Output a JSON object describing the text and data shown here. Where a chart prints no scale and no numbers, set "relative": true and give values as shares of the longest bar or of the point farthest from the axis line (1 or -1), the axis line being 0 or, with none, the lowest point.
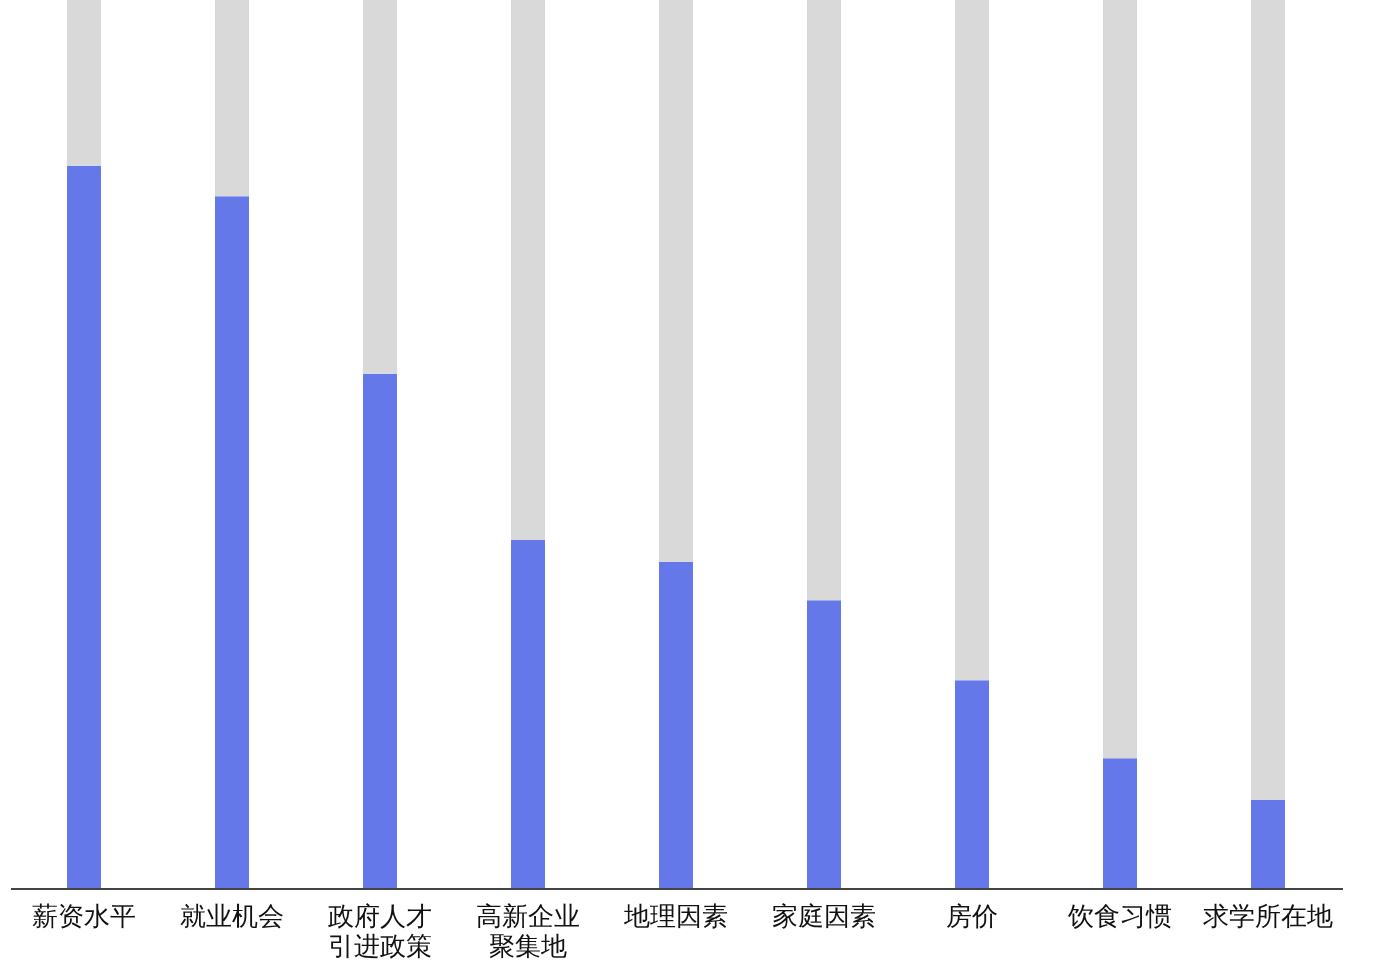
{
  "chart_data": {
    "type": "bar",
    "relative": true,
    "stacked": true,
    "categories": [
      "薪资水平",
      "就业机会",
      "政府人才引进政策",
      "高新企业聚集地",
      "地理因素",
      "家庭因素",
      "房价",
      "饮食习惯",
      "求学所在地"
    ],
    "series": [
      {
        "color": "#6578ea",
        "values": [
          0.813,
          0.779,
          0.579,
          0.392,
          0.367,
          0.324,
          0.234,
          0.146,
          0.099
        ]
      },
      {
        "color": "#d9d9d9",
        "values": [
          0.187,
          0.221,
          0.421,
          0.608,
          0.633,
          0.676,
          0.766,
          0.854,
          0.901
        ]
      }
    ]
  }
}
